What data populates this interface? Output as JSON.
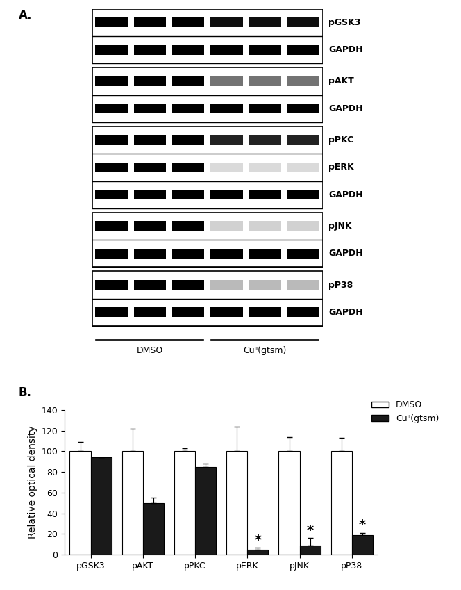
{
  "panel_labels": [
    "A.",
    "B."
  ],
  "blot": {
    "groups": [
      [
        "pGSK3",
        "GAPDH"
      ],
      [
        "pAKT",
        "GAPDH"
      ],
      [
        "pPKC",
        "pERK",
        "GAPDH"
      ],
      [
        "pJNK",
        "GAPDH"
      ],
      [
        "pP38",
        "GAPDH"
      ]
    ],
    "lanes": [
      {
        "label": "DMSO",
        "count": 3
      },
      {
        "label": "Cuᴵᴵ(gtsm)",
        "count": 3
      }
    ]
  },
  "chart_data": {
    "type": "bar",
    "y_label": "Relative optical density",
    "categories": [
      "pGSK3",
      "pAKT",
      "pPKC",
      "pERK",
      "pJNK",
      "pP38"
    ],
    "series": [
      {
        "name": "DMSO",
        "color": "#ffffff",
        "values": [
          100,
          100,
          100,
          100,
          100,
          100
        ],
        "errors": [
          9,
          22,
          3,
          24,
          14,
          13
        ]
      },
      {
        "name": "Cuᴵᴵ(gtsm)",
        "color": "#1a1a1a",
        "values": [
          94,
          50,
          85,
          5,
          9,
          19
        ],
        "errors": [
          0.5,
          5,
          3,
          1.5,
          7,
          2
        ]
      }
    ],
    "annotations": [
      {
        "category": "pERK",
        "series": "Cuᴵᴵ(gtsm)",
        "text": "*"
      },
      {
        "category": "pJNK",
        "series": "Cuᴵᴵ(gtsm)",
        "text": "*"
      },
      {
        "category": "pP38",
        "series": "Cuᴵᴵ(gtsm)",
        "text": "*"
      }
    ],
    "ylim": [
      0,
      140
    ],
    "yticks": [
      0,
      20,
      40,
      60,
      80,
      100,
      120,
      140
    ],
    "legend": "upper right",
    "grid": false
  }
}
